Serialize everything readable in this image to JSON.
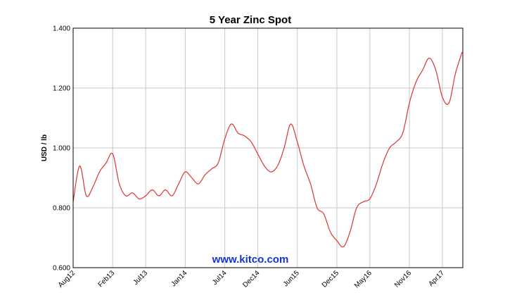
{
  "chart_data": {
    "type": "line",
    "title": "5 Year Zinc Spot",
    "xlabel": "",
    "ylabel": "USD / lb",
    "ylim": [
      0.6,
      1.4
    ],
    "y_ticks": [
      "0.600",
      "0.800",
      "1.000",
      "1.200",
      "1.400"
    ],
    "x_ticks": [
      "Aug12",
      "Feb13",
      "Jul13",
      "Jan14",
      "Jul14",
      "Dec14",
      "Jun15",
      "Dec15",
      "May16",
      "Nov16",
      "Apr17"
    ],
    "grid": true,
    "series_color": "#dd3333",
    "watermark": "www.kitco.com",
    "watermark_color": "#1133dd",
    "series": [
      {
        "name": "",
        "x": [
          "Aug12",
          "Sep12",
          "Oct12",
          "Nov12",
          "Dec12",
          "Jan13",
          "Feb13",
          "Mar13",
          "Apr13",
          "May13",
          "Jun13",
          "Jul13",
          "Aug13",
          "Sep13",
          "Oct13",
          "Nov13",
          "Dec13",
          "Jan14",
          "Feb14",
          "Mar14",
          "Apr14",
          "May14",
          "Jun14",
          "Jul14",
          "Aug14",
          "Sep14",
          "Oct14",
          "Nov14",
          "Dec14",
          "Jan15",
          "Feb15",
          "Mar15",
          "Apr15",
          "May15",
          "Jun15",
          "Jul15",
          "Aug15",
          "Sep15",
          "Oct15",
          "Nov15",
          "Dec15",
          "Jan16",
          "Feb16",
          "Mar16",
          "Apr16",
          "May16",
          "Jun16",
          "Jul16",
          "Aug16",
          "Sep16",
          "Oct16",
          "Nov16",
          "Dec16",
          "Jan17",
          "Feb17",
          "Mar17",
          "Apr17",
          "May17",
          "Jun17",
          "Jul17"
        ],
        "values": [
          0.82,
          0.94,
          0.84,
          0.87,
          0.92,
          0.95,
          0.98,
          0.88,
          0.84,
          0.85,
          0.83,
          0.84,
          0.86,
          0.84,
          0.86,
          0.84,
          0.88,
          0.92,
          0.9,
          0.88,
          0.91,
          0.93,
          0.95,
          1.03,
          1.08,
          1.05,
          1.04,
          1.02,
          0.98,
          0.94,
          0.92,
          0.94,
          1.0,
          1.08,
          1.02,
          0.94,
          0.88,
          0.8,
          0.78,
          0.72,
          0.69,
          0.67,
          0.72,
          0.8,
          0.82,
          0.83,
          0.88,
          0.95,
          1.0,
          1.02,
          1.05,
          1.15,
          1.22,
          1.26,
          1.3,
          1.26,
          1.17,
          1.15,
          1.25,
          1.32
        ]
      }
    ]
  }
}
